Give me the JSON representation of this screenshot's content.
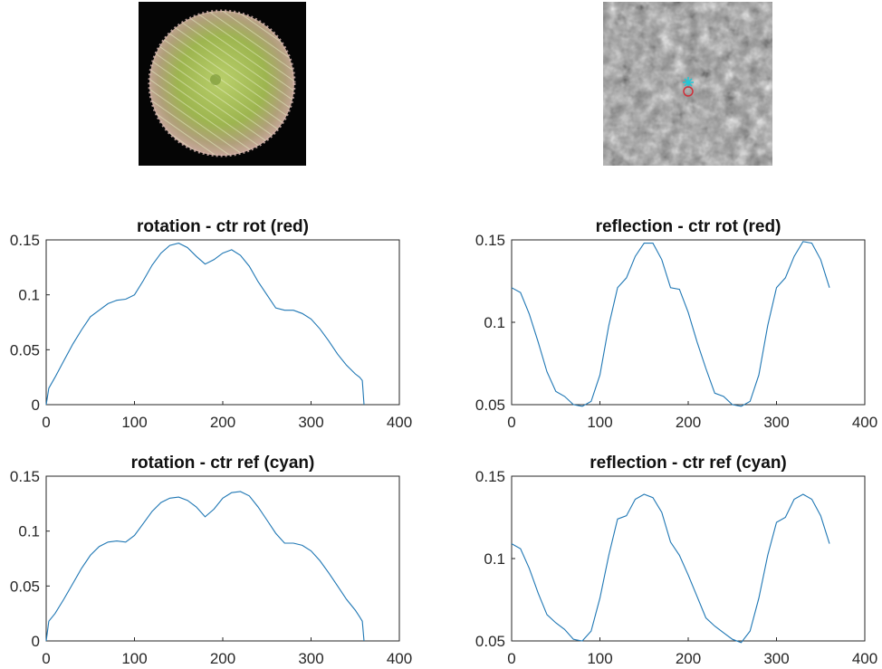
{
  "images": [
    {
      "caption": "",
      "kind": "color-photo-sea-urchin"
    },
    {
      "caption": "",
      "kind": "grayscale-closeup",
      "markers": [
        {
          "shape": "asterisk",
          "color": "#1fc8d8"
        },
        {
          "shape": "circle",
          "color": "#d0303a"
        }
      ]
    }
  ],
  "series_color": "#1f77b4",
  "chart_data": [
    {
      "type": "line",
      "title": "rotation - ctr rot (red)",
      "xlabel": "",
      "ylabel": "",
      "xlim": [
        0,
        400
      ],
      "ylim": [
        0,
        0.15
      ],
      "xticks": [
        "0",
        "100",
        "200",
        "300",
        "400"
      ],
      "yticks": [
        "0",
        "0.05",
        "0.1",
        "0.15"
      ],
      "x": [
        0,
        3,
        10,
        20,
        30,
        40,
        50,
        60,
        70,
        80,
        90,
        100,
        110,
        120,
        130,
        140,
        150,
        160,
        170,
        180,
        190,
        200,
        210,
        220,
        230,
        240,
        250,
        260,
        270,
        280,
        290,
        300,
        310,
        320,
        330,
        340,
        350,
        355,
        358,
        360
      ],
      "series": [
        {
          "values": [
            0.0,
            0.015,
            0.025,
            0.04,
            0.055,
            0.068,
            0.08,
            0.086,
            0.092,
            0.095,
            0.096,
            0.1,
            0.113,
            0.127,
            0.138,
            0.145,
            0.147,
            0.143,
            0.135,
            0.128,
            0.132,
            0.138,
            0.141,
            0.136,
            0.126,
            0.112,
            0.1,
            0.088,
            0.086,
            0.086,
            0.083,
            0.078,
            0.069,
            0.058,
            0.046,
            0.036,
            0.028,
            0.025,
            0.022,
            0.0
          ]
        }
      ]
    },
    {
      "type": "line",
      "title": "reflection - ctr rot (red)",
      "xlabel": "",
      "ylabel": "",
      "xlim": [
        0,
        400
      ],
      "ylim": [
        0.05,
        0.15
      ],
      "xticks": [
        "0",
        "100",
        "200",
        "300",
        "400"
      ],
      "yticks": [
        "0.05",
        "0.1",
        "0.15"
      ],
      "x": [
        0,
        10,
        20,
        30,
        40,
        50,
        60,
        70,
        80,
        90,
        100,
        110,
        120,
        130,
        140,
        150,
        160,
        170,
        180,
        190,
        200,
        210,
        220,
        230,
        240,
        250,
        260,
        270,
        280,
        290,
        300,
        310,
        320,
        330,
        340,
        350,
        360
      ],
      "series": [
        {
          "values": [
            0.121,
            0.118,
            0.105,
            0.088,
            0.07,
            0.058,
            0.055,
            0.05,
            0.049,
            0.052,
            0.068,
            0.098,
            0.121,
            0.127,
            0.14,
            0.148,
            0.148,
            0.138,
            0.121,
            0.12,
            0.106,
            0.088,
            0.072,
            0.057,
            0.055,
            0.05,
            0.049,
            0.052,
            0.068,
            0.098,
            0.121,
            0.127,
            0.14,
            0.149,
            0.148,
            0.138,
            0.121
          ]
        }
      ]
    },
    {
      "type": "line",
      "title": "rotation - ctr ref (cyan)",
      "xlabel": "",
      "ylabel": "",
      "xlim": [
        0,
        400
      ],
      "ylim": [
        0,
        0.15
      ],
      "xticks": [
        "0",
        "100",
        "200",
        "300",
        "400"
      ],
      "yticks": [
        "0",
        "0.05",
        "0.1",
        "0.15"
      ],
      "x": [
        0,
        3,
        10,
        20,
        30,
        40,
        50,
        60,
        70,
        80,
        90,
        100,
        110,
        120,
        130,
        140,
        150,
        160,
        170,
        180,
        190,
        200,
        210,
        220,
        230,
        240,
        250,
        260,
        270,
        280,
        290,
        300,
        310,
        320,
        330,
        340,
        350,
        355,
        358,
        360
      ],
      "series": [
        {
          "values": [
            0.0,
            0.018,
            0.025,
            0.038,
            0.052,
            0.066,
            0.078,
            0.086,
            0.09,
            0.091,
            0.09,
            0.096,
            0.107,
            0.118,
            0.126,
            0.13,
            0.131,
            0.128,
            0.122,
            0.113,
            0.12,
            0.13,
            0.135,
            0.136,
            0.132,
            0.122,
            0.11,
            0.098,
            0.089,
            0.089,
            0.087,
            0.082,
            0.073,
            0.062,
            0.05,
            0.038,
            0.028,
            0.022,
            0.018,
            0.0
          ]
        }
      ]
    },
    {
      "type": "line",
      "title": "reflection - ctr ref (cyan)",
      "xlabel": "",
      "ylabel": "",
      "xlim": [
        0,
        400
      ],
      "ylim": [
        0.05,
        0.15
      ],
      "xticks": [
        "0",
        "100",
        "200",
        "300",
        "400"
      ],
      "yticks": [
        "0.05",
        "0.1",
        "0.15"
      ],
      "x": [
        0,
        10,
        20,
        30,
        40,
        50,
        60,
        70,
        80,
        90,
        100,
        110,
        120,
        130,
        140,
        150,
        160,
        170,
        180,
        190,
        200,
        210,
        220,
        230,
        240,
        250,
        260,
        270,
        280,
        290,
        300,
        310,
        320,
        330,
        340,
        350,
        360
      ],
      "series": [
        {
          "values": [
            0.109,
            0.106,
            0.094,
            0.079,
            0.066,
            0.061,
            0.057,
            0.051,
            0.05,
            0.056,
            0.076,
            0.102,
            0.124,
            0.126,
            0.136,
            0.139,
            0.137,
            0.128,
            0.11,
            0.102,
            0.09,
            0.077,
            0.064,
            0.059,
            0.055,
            0.051,
            0.049,
            0.056,
            0.076,
            0.102,
            0.122,
            0.125,
            0.136,
            0.139,
            0.136,
            0.126,
            0.109
          ]
        }
      ]
    }
  ]
}
